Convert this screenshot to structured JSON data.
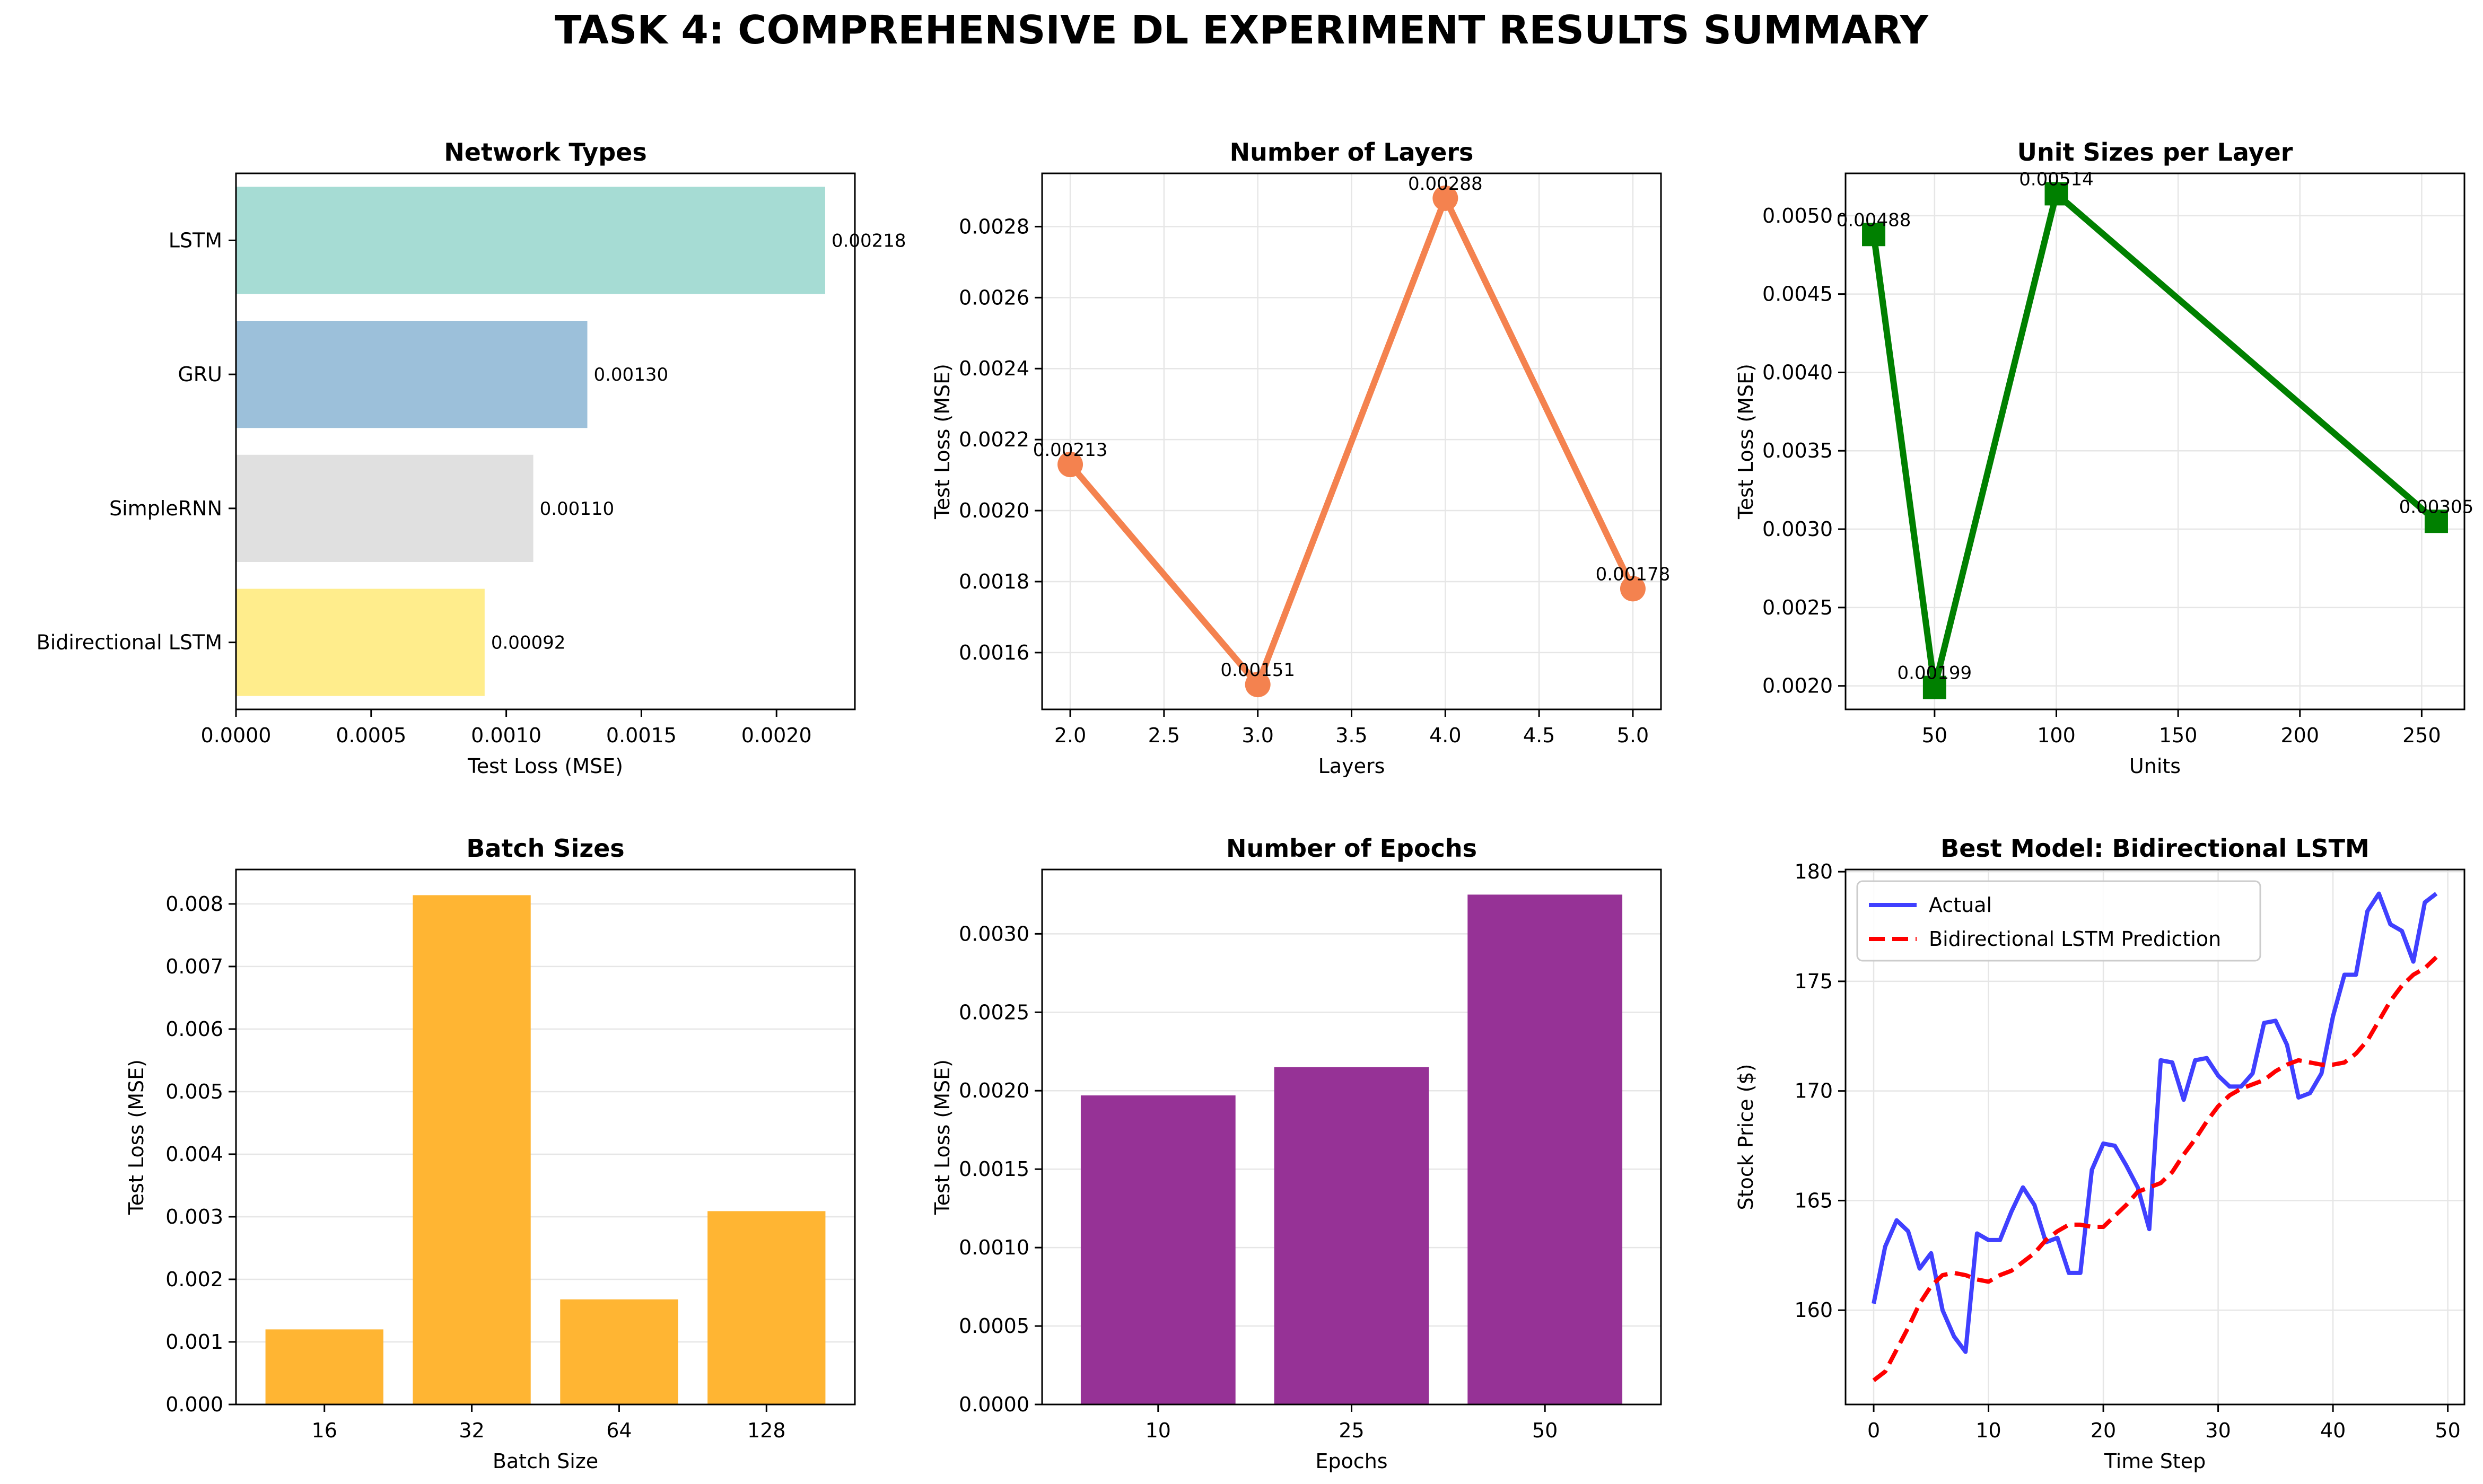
{
  "title": "TASK 4: COMPREHENSIVE DL EXPERIMENT RESULTS SUMMARY",
  "chart_data": [
    {
      "id": "network-types",
      "type": "bar",
      "orientation": "horizontal",
      "title": "Network Types",
      "xlabel": "Test Loss (MSE)",
      "ylabel": "",
      "categories": [
        "LSTM",
        "GRU",
        "SimpleRNN",
        "Bidirectional LSTM"
      ],
      "values": [
        0.00218,
        0.0013,
        0.0011,
        0.00092
      ],
      "value_labels": [
        "0.00218",
        "0.00130",
        "0.00110",
        "0.00092"
      ],
      "colors": [
        "#a6dcd4",
        "#9cc0da",
        "#e0e0e0",
        "#ffed8c"
      ],
      "xlim": [
        0,
        0.00229
      ],
      "xticks": [
        0,
        0.0005,
        0.001,
        0.0015,
        0.002
      ],
      "xtick_labels": [
        "0.0000",
        "0.0005",
        "0.0010",
        "0.0015",
        "0.0020"
      ],
      "grid": false
    },
    {
      "id": "number-of-layers",
      "type": "line",
      "title": "Number of Layers",
      "xlabel": "Layers",
      "ylabel": "Test Loss (MSE)",
      "x": [
        2,
        3,
        4,
        5
      ],
      "y": [
        0.00213,
        0.00151,
        0.00288,
        0.00178
      ],
      "value_labels": [
        "0.00213",
        "0.00151",
        "0.00288",
        "0.00178"
      ],
      "color": "#f4824f",
      "marker": "circle",
      "xlim": [
        1.85,
        5.15
      ],
      "ylim": [
        0.00144,
        0.00295
      ],
      "xticks": [
        2,
        2.5,
        3,
        3.5,
        4,
        4.5,
        5
      ],
      "xtick_labels": [
        "2.0",
        "2.5",
        "3.0",
        "3.5",
        "4.0",
        "4.5",
        "5.0"
      ],
      "yticks": [
        0.0016,
        0.0018,
        0.002,
        0.0022,
        0.0024,
        0.0026,
        0.0028
      ],
      "ytick_labels": [
        "0.0016",
        "0.0018",
        "0.0020",
        "0.0022",
        "0.0024",
        "0.0026",
        "0.0028"
      ],
      "grid": true
    },
    {
      "id": "unit-sizes",
      "type": "line",
      "title": "Unit Sizes per Layer",
      "xlabel": "Units",
      "ylabel": "Test Loss (MSE)",
      "x": [
        25,
        50,
        100,
        256
      ],
      "y": [
        0.00488,
        0.00199,
        0.00514,
        0.00305
      ],
      "value_labels": [
        "0.00488",
        "0.00199",
        "0.00514",
        "0.00305"
      ],
      "color": "#008000",
      "marker": "square",
      "xlim": [
        13.45,
        267.55
      ],
      "ylim": [
        0.00185,
        0.00527
      ],
      "xticks": [
        50,
        100,
        150,
        200,
        250
      ],
      "xtick_labels": [
        "50",
        "100",
        "150",
        "200",
        "250"
      ],
      "yticks": [
        0.002,
        0.0025,
        0.003,
        0.0035,
        0.004,
        0.0045,
        0.005
      ],
      "ytick_labels": [
        "0.0020",
        "0.0025",
        "0.0030",
        "0.0035",
        "0.0040",
        "0.0045",
        "0.0050"
      ],
      "grid": true
    },
    {
      "id": "batch-sizes",
      "type": "bar",
      "title": "Batch Sizes",
      "xlabel": "Batch Size",
      "ylabel": "Test Loss (MSE)",
      "categories": [
        "16",
        "32",
        "64",
        "128"
      ],
      "values": [
        0.0012,
        0.00814,
        0.00168,
        0.00309
      ],
      "color": "#ffb533",
      "ylim": [
        0,
        0.00855
      ],
      "yticks": [
        0,
        0.001,
        0.002,
        0.003,
        0.004,
        0.005,
        0.006,
        0.007,
        0.008
      ],
      "ytick_labels": [
        "0.000",
        "0.001",
        "0.002",
        "0.003",
        "0.004",
        "0.005",
        "0.006",
        "0.007",
        "0.008"
      ],
      "grid": "y"
    },
    {
      "id": "number-of-epochs",
      "type": "bar",
      "title": "Number of Epochs",
      "xlabel": "Epochs",
      "ylabel": "Test Loss (MSE)",
      "categories": [
        "10",
        "25",
        "50"
      ],
      "values": [
        0.00197,
        0.00215,
        0.00325
      ],
      "color": "#963296",
      "ylim": [
        0,
        0.00341
      ],
      "yticks": [
        0,
        0.0005,
        0.001,
        0.0015,
        0.002,
        0.0025,
        0.003
      ],
      "ytick_labels": [
        "0.0000",
        "0.0005",
        "0.0010",
        "0.0015",
        "0.0020",
        "0.0025",
        "0.0030"
      ],
      "grid": "y"
    },
    {
      "id": "best-model",
      "type": "line",
      "title": "Best Model: Bidirectional LSTM",
      "xlabel": "Time Step",
      "ylabel": "Stock Price ($)",
      "x": [
        0,
        1,
        2,
        3,
        4,
        5,
        6,
        7,
        8,
        9,
        10,
        11,
        12,
        13,
        14,
        15,
        16,
        17,
        18,
        19,
        20,
        21,
        22,
        23,
        24,
        25,
        26,
        27,
        28,
        29,
        30,
        31,
        32,
        33,
        34,
        35,
        36,
        37,
        38,
        39,
        40,
        41,
        42,
        43,
        44,
        45,
        46,
        47,
        48,
        49
      ],
      "series": [
        {
          "name": "Actual",
          "color": "#4040ff",
          "dash": "solid",
          "values": [
            160.3,
            162.9,
            164.1,
            163.6,
            161.9,
            162.6,
            160.0,
            158.8,
            158.1,
            163.5,
            163.2,
            163.2,
            164.5,
            165.6,
            164.8,
            163.1,
            163.3,
            161.7,
            161.7,
            166.4,
            167.6,
            167.5,
            166.6,
            165.6,
            163.7,
            171.4,
            171.3,
            169.6,
            171.4,
            171.5,
            170.7,
            170.2,
            170.2,
            170.8,
            173.1,
            173.2,
            172.1,
            169.7,
            169.9,
            170.8,
            173.4,
            175.3,
            175.3,
            178.2,
            179.0,
            177.6,
            177.3,
            175.9,
            178.6,
            179.0
          ]
        },
        {
          "name": "Bidirectional LSTM Prediction",
          "color": "#ff0000",
          "dash": "dashed",
          "values": [
            156.8,
            157.2,
            158.2,
            159.2,
            160.3,
            161.1,
            161.6,
            161.7,
            161.6,
            161.4,
            161.3,
            161.6,
            161.8,
            162.2,
            162.6,
            163.2,
            163.6,
            163.9,
            163.9,
            163.8,
            163.8,
            164.3,
            164.8,
            165.4,
            165.6,
            165.8,
            166.3,
            167.1,
            167.8,
            168.6,
            169.3,
            169.8,
            170.1,
            170.3,
            170.5,
            170.9,
            171.2,
            171.4,
            171.3,
            171.2,
            171.2,
            171.3,
            171.7,
            172.3,
            173.2,
            174.1,
            174.8,
            175.3,
            175.6,
            176.1
          ]
        }
      ],
      "xlim": [
        -2.45,
        51.45
      ],
      "ylim": [
        155.7,
        180.1
      ],
      "xticks": [
        0,
        10,
        20,
        30,
        40,
        50
      ],
      "xtick_labels": [
        "0",
        "10",
        "20",
        "30",
        "40",
        "50"
      ],
      "yticks": [
        160,
        165,
        170,
        175,
        180
      ],
      "ytick_labels": [
        "160",
        "165",
        "170",
        "175",
        "180"
      ],
      "legend": "top-left",
      "grid": true
    }
  ]
}
